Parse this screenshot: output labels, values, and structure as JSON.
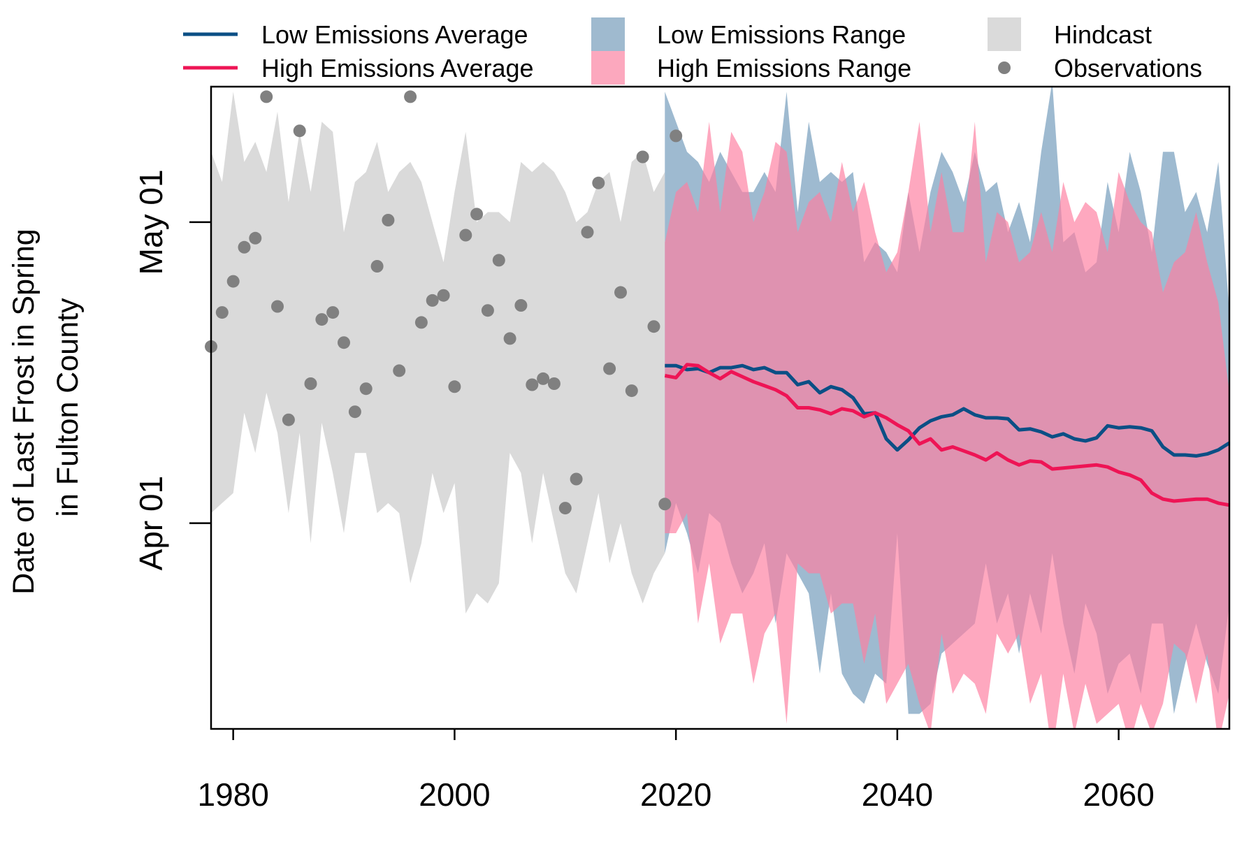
{
  "chart_data": {
    "type": "line",
    "xlabel": "",
    "ylabel": [
      "Date of Last Frost in Spring",
      "in Fulton County"
    ],
    "xlim": [
      1978,
      2070
    ],
    "ylim_day_of_year": [
      70.5,
      134.5
    ],
    "x_ticks": [
      {
        "value": 1980,
        "label": "1980"
      },
      {
        "value": 2000,
        "label": "2000"
      },
      {
        "value": 2020,
        "label": "2020"
      },
      {
        "value": 2040,
        "label": "2040"
      },
      {
        "value": 2060,
        "label": "2060"
      }
    ],
    "y_ticks": [
      {
        "value": 91,
        "label": "Apr 01"
      },
      {
        "value": 121,
        "label": "May 01"
      }
    ],
    "grid": false,
    "legend_position": "top",
    "legend": [
      {
        "label": "Low Emissions Average",
        "kind": "line",
        "color": "#0b4f85"
      },
      {
        "label": "High Emissions Average",
        "kind": "line",
        "color": "#ee1455"
      },
      {
        "label": "Low Emissions Range",
        "kind": "box",
        "color": "#9fbacf"
      },
      {
        "label": "High Emissions Range",
        "kind": "box",
        "color": "#fca8be"
      },
      {
        "label": "Hindcast",
        "kind": "box",
        "color": "#dadada"
      },
      {
        "label": "Observations",
        "kind": "point",
        "color": "#808080"
      }
    ],
    "colors": {
      "hindcast": "#dadada",
      "low_range": "#7ea3c0",
      "low_range_opacity": 0.75,
      "high_range": "#fd7fa0",
      "high_range_opacity": 0.68,
      "low_avg": "#0b4f85",
      "high_avg": "#ee1455",
      "observations": "#808080"
    },
    "hindcast_range": {
      "x": [
        1978,
        1979,
        1980,
        1981,
        1982,
        1983,
        1984,
        1985,
        1986,
        1987,
        1988,
        1989,
        1990,
        1991,
        1992,
        1993,
        1994,
        1995,
        1996,
        1997,
        1998,
        1999,
        2000,
        2001,
        2002,
        2003,
        2004,
        2005,
        2006,
        2007,
        2008,
        2009,
        2010,
        2011,
        2012,
        2013,
        2014,
        2015,
        2016,
        2017,
        2018,
        2019
      ],
      "upper": [
        128,
        125,
        134,
        127,
        129,
        126,
        132,
        123,
        130,
        124,
        131,
        130,
        120,
        125,
        126,
        129,
        124,
        126,
        127,
        125,
        121,
        117,
        124,
        130,
        121,
        122,
        122,
        121,
        127,
        126,
        127,
        126,
        124,
        121,
        122,
        125,
        126,
        121,
        127,
        128,
        124,
        126
      ],
      "lower": [
        92,
        93,
        94,
        102,
        98,
        104,
        100,
        92,
        100,
        89,
        101,
        96,
        90,
        98,
        98,
        92,
        93,
        92,
        85,
        89,
        96,
        92,
        95,
        82,
        84,
        83,
        85,
        98,
        96,
        89,
        96,
        91,
        86,
        84,
        89,
        94,
        87,
        91,
        86,
        83,
        86,
        88
      ]
    },
    "observations": {
      "x": [
        1978,
        1979,
        1980,
        1981,
        1982,
        1983,
        1984,
        1985,
        1986,
        1987,
        1988,
        1989,
        1990,
        1991,
        1992,
        1993,
        1994,
        1995,
        1996,
        1997,
        1998,
        1999,
        2000,
        2001,
        2002,
        2003,
        2004,
        2005,
        2006,
        2007,
        2008,
        2009,
        2010,
        2011,
        2012,
        2013,
        2014,
        2015,
        2016,
        2017,
        2018,
        2019,
        2020
      ],
      "y": [
        108.6,
        112,
        115.1,
        118.5,
        119.4,
        133.5,
        112.6,
        101.3,
        130.1,
        104.9,
        111.3,
        112,
        109,
        102.1,
        104.4,
        116.6,
        121.2,
        106.2,
        133.5,
        111,
        113.2,
        113.7,
        104.6,
        119.7,
        121.8,
        112.2,
        117.2,
        109.4,
        112.7,
        104.8,
        105.4,
        104.9,
        92.5,
        95.4,
        120,
        124.9,
        106.4,
        114,
        104.2,
        127.5,
        110.6,
        92.9,
        129.6
      ]
    },
    "low_range": {
      "x": [
        2019,
        2020,
        2021,
        2022,
        2023,
        2024,
        2025,
        2026,
        2027,
        2028,
        2029,
        2030,
        2031,
        2032,
        2033,
        2034,
        2035,
        2036,
        2037,
        2038,
        2039,
        2040,
        2041,
        2042,
        2043,
        2044,
        2045,
        2046,
        2047,
        2048,
        2049,
        2050,
        2051,
        2052,
        2053,
        2054,
        2055,
        2056,
        2057,
        2058,
        2059,
        2060,
        2061,
        2062,
        2063,
        2064,
        2065,
        2066,
        2067,
        2068,
        2069,
        2070
      ],
      "upper": [
        134,
        131,
        128,
        127,
        125,
        128,
        126,
        124,
        124,
        126,
        124,
        134,
        122,
        131,
        125,
        126,
        125,
        126,
        117,
        119,
        118,
        116,
        124,
        118,
        124,
        128,
        126,
        123,
        128,
        124,
        125,
        120,
        123,
        119,
        128,
        135,
        119,
        120,
        116,
        117,
        125,
        120,
        128,
        124,
        118,
        128,
        128,
        122,
        124,
        120,
        127,
        112
      ],
      "lower": [
        88,
        93,
        90,
        86,
        92,
        91,
        87,
        84,
        86,
        89,
        81,
        88,
        86,
        84,
        76,
        84,
        76,
        74,
        73,
        76,
        75,
        90,
        72,
        72,
        73,
        78,
        79,
        80,
        81,
        87,
        81,
        84,
        78,
        84,
        80,
        88,
        81,
        76,
        83,
        80,
        74,
        77,
        78,
        74,
        81,
        81,
        72,
        77,
        81,
        77,
        74,
        83
      ]
    },
    "high_range": {
      "x": [
        2019,
        2020,
        2021,
        2022,
        2023,
        2024,
        2025,
        2026,
        2027,
        2028,
        2029,
        2030,
        2031,
        2032,
        2033,
        2034,
        2035,
        2036,
        2037,
        2038,
        2039,
        2040,
        2041,
        2042,
        2043,
        2044,
        2045,
        2046,
        2047,
        2048,
        2049,
        2050,
        2051,
        2052,
        2053,
        2054,
        2055,
        2056,
        2057,
        2058,
        2059,
        2060,
        2061,
        2062,
        2063,
        2064,
        2065,
        2066,
        2067,
        2068,
        2069,
        2070
      ],
      "upper": [
        119,
        124,
        125,
        122,
        131,
        122,
        130,
        128,
        121,
        124,
        129,
        128,
        120,
        123,
        124,
        121,
        127,
        122,
        125,
        120,
        116,
        118,
        124,
        131,
        120,
        126,
        120,
        120,
        131,
        117,
        122,
        121,
        117,
        118,
        122,
        118,
        125,
        121,
        123,
        122,
        118,
        126,
        123,
        121,
        120,
        114,
        117,
        118,
        122,
        117,
        113,
        104
      ],
      "lower": [
        90,
        90,
        92,
        81,
        87,
        79,
        82,
        82,
        75,
        80,
        82,
        71,
        87,
        86,
        86,
        82,
        83,
        83,
        77,
        82,
        73,
        75,
        77,
        73,
        70,
        80,
        74,
        76,
        75,
        72,
        80,
        78,
        80,
        73,
        76,
        68,
        76,
        70,
        75,
        71,
        72,
        73,
        69,
        73,
        70,
        73,
        79,
        78,
        73,
        78,
        69,
        74
      ]
    },
    "series": [
      {
        "name": "Low Emissions Average",
        "color": "#0b4f85",
        "x": [
          2019,
          2020,
          2021,
          2022,
          2023,
          2024,
          2025,
          2026,
          2027,
          2028,
          2029,
          2030,
          2031,
          2032,
          2033,
          2034,
          2035,
          2036,
          2037,
          2038,
          2039,
          2040,
          2041,
          2042,
          2043,
          2044,
          2045,
          2046,
          2047,
          2048,
          2049,
          2050,
          2051,
          2052,
          2053,
          2054,
          2055,
          2056,
          2057,
          2058,
          2059,
          2060,
          2061,
          2062,
          2063,
          2064,
          2065,
          2066,
          2067,
          2068,
          2069,
          2070
        ],
        "values": [
          106.7,
          106.7,
          106.3,
          106.4,
          106,
          106.5,
          106.5,
          106.7,
          106.3,
          106.5,
          106,
          106,
          104.8,
          105.1,
          104,
          104.6,
          104.3,
          103.5,
          101.9,
          102,
          99.4,
          98.3,
          99.3,
          100.5,
          101.2,
          101.6,
          101.8,
          102.4,
          101.8,
          101.5,
          101.5,
          101.4,
          100.3,
          100.4,
          100.1,
          99.6,
          99.9,
          99.4,
          99.2,
          99.5,
          100.7,
          100.5,
          100.6,
          100.5,
          100.2,
          98.6,
          97.8,
          97.8,
          97.7,
          97.9,
          98.3,
          99
        ]
      },
      {
        "name": "High Emissions Average",
        "color": "#ee1455",
        "x": [
          2019,
          2020,
          2021,
          2022,
          2023,
          2024,
          2025,
          2026,
          2027,
          2028,
          2029,
          2030,
          2031,
          2032,
          2033,
          2034,
          2035,
          2036,
          2037,
          2038,
          2039,
          2040,
          2041,
          2042,
          2043,
          2044,
          2045,
          2046,
          2047,
          2048,
          2049,
          2050,
          2051,
          2052,
          2053,
          2054,
          2055,
          2056,
          2057,
          2058,
          2059,
          2060,
          2061,
          2062,
          2063,
          2064,
          2065,
          2066,
          2067,
          2068,
          2069,
          2070
        ],
        "values": [
          105.7,
          105.5,
          106.8,
          106.7,
          106,
          105.4,
          106.1,
          105.6,
          105.1,
          104.7,
          104.3,
          103.7,
          102.5,
          102.5,
          102.3,
          101.9,
          102.4,
          102.2,
          101.6,
          102,
          101.5,
          100.8,
          100.2,
          98.9,
          99.4,
          98.3,
          98.6,
          98.2,
          97.8,
          97.3,
          98,
          97.3,
          96.8,
          97.2,
          97.1,
          96.4,
          96.5,
          96.6,
          96.7,
          96.8,
          96.6,
          96.1,
          95.8,
          95.3,
          94,
          93.4,
          93.2,
          93.3,
          93.4,
          93.4,
          93,
          92.8
        ]
      }
    ]
  }
}
